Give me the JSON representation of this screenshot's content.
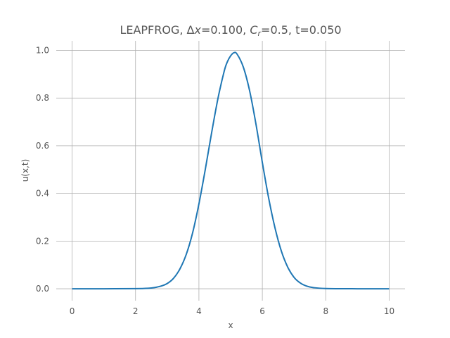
{
  "chart_data": {
    "type": "line",
    "title": "LEAPFROG, Δx=0.100, C_r=0.5, t=0.050",
    "title_parts": {
      "prefix": "LEAPFROG, Δ",
      "dx_symbol": "x",
      "dx_eq": "=0.100, ",
      "cr_symbol": "C",
      "cr_sub": "r",
      "suffix": "=0.5, t=0.050"
    },
    "xlabel": "x",
    "ylabel": "u(x,t)",
    "xlim": [
      -0.5,
      10.5
    ],
    "ylim": [
      -0.05,
      1.04
    ],
    "x_ticks": [
      0,
      2,
      4,
      6,
      8,
      10
    ],
    "x_tick_labels": [
      "0",
      "2",
      "4",
      "6",
      "8",
      "10"
    ],
    "y_ticks": [
      0.0,
      0.2,
      0.4,
      0.6,
      0.8,
      1.0
    ],
    "y_tick_labels": [
      "0.0",
      "0.2",
      "0.4",
      "0.6",
      "0.8",
      "1.0"
    ],
    "grid": true,
    "series": [
      {
        "color": "#1f77b4",
        "x": [
          0.0,
          1.0,
          2.0,
          2.4,
          2.6,
          2.8,
          3.0,
          3.2,
          3.4,
          3.6,
          3.8,
          4.0,
          4.2,
          4.4,
          4.6,
          4.8,
          4.9,
          5.0,
          5.1,
          5.2,
          5.4,
          5.6,
          5.8,
          6.0,
          6.2,
          6.4,
          6.6,
          6.8,
          7.0,
          7.2,
          7.4,
          7.6,
          8.0,
          9.0,
          10.0
        ],
        "y": [
          0.0,
          0.0,
          0.0005,
          0.002,
          0.005,
          0.011,
          0.022,
          0.044,
          0.083,
          0.144,
          0.234,
          0.356,
          0.5,
          0.654,
          0.798,
          0.914,
          0.953,
          0.977,
          0.99,
          0.985,
          0.93,
          0.83,
          0.69,
          0.53,
          0.38,
          0.255,
          0.158,
          0.091,
          0.048,
          0.024,
          0.011,
          0.005,
          0.001,
          0.0,
          0.0
        ]
      }
    ]
  }
}
